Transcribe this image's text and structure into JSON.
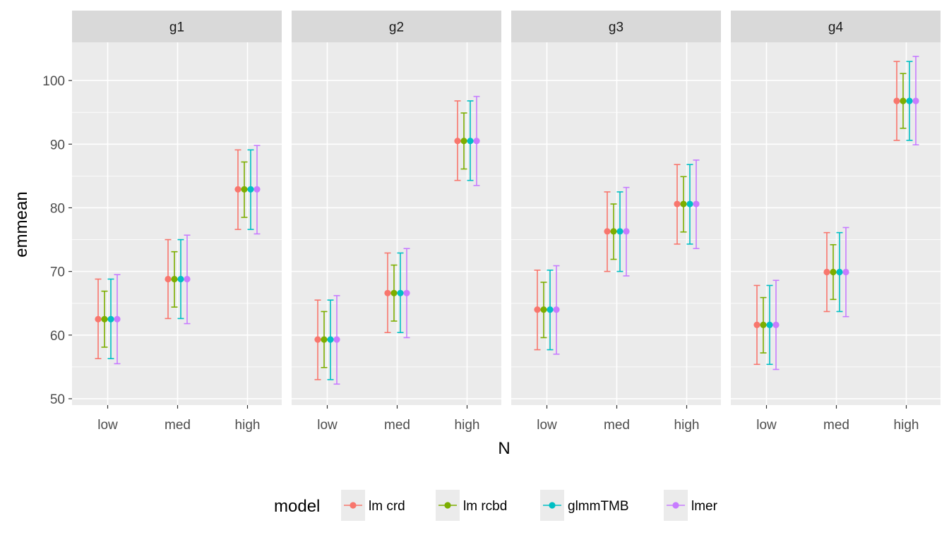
{
  "chart_data": {
    "type": "scatter",
    "subtype": "point-errorbar-faceted",
    "xlabel": "N",
    "ylabel": "emmean",
    "categories": [
      "low",
      "med",
      "high"
    ],
    "facets": [
      "g1",
      "g2",
      "g3",
      "g4"
    ],
    "ylim": [
      49,
      106
    ],
    "yticks": [
      50,
      60,
      70,
      80,
      90,
      100
    ],
    "grid": true,
    "legend": {
      "title": "model",
      "position": "bottom",
      "entries": [
        "lm crd",
        "lm rcbd",
        "glmmTMB",
        "lmer"
      ]
    },
    "colors": {
      "lm crd": "#F8766D",
      "lm rcbd": "#7CAE00",
      "glmmTMB": "#00BFC4",
      "lmer": "#C77CFF"
    },
    "panels": [
      {
        "facet": "g1",
        "series": [
          {
            "name": "lm crd",
            "y": [
              62.5,
              68.8,
              82.9
            ],
            "lower": [
              56.3,
              62.6,
              76.6
            ],
            "upper": [
              68.8,
              75.0,
              89.1
            ]
          },
          {
            "name": "lm rcbd",
            "y": [
              62.5,
              68.8,
              82.9
            ],
            "lower": [
              58.1,
              64.4,
              78.5
            ],
            "upper": [
              66.9,
              73.1,
              87.2
            ]
          },
          {
            "name": "glmmTMB",
            "y": [
              62.5,
              68.8,
              82.9
            ],
            "lower": [
              56.3,
              62.6,
              76.6
            ],
            "upper": [
              68.8,
              75.0,
              89.1
            ]
          },
          {
            "name": "lmer",
            "y": [
              62.5,
              68.8,
              82.9
            ],
            "lower": [
              55.5,
              61.8,
              75.9
            ],
            "upper": [
              69.5,
              75.7,
              89.8
            ]
          }
        ]
      },
      {
        "facet": "g2",
        "series": [
          {
            "name": "lm crd",
            "y": [
              59.3,
              66.6,
              90.5
            ],
            "lower": [
              53.0,
              60.4,
              84.3
            ],
            "upper": [
              65.5,
              72.9,
              96.8
            ]
          },
          {
            "name": "lm rcbd",
            "y": [
              59.3,
              66.6,
              90.5
            ],
            "lower": [
              54.9,
              62.2,
              86.1
            ],
            "upper": [
              63.7,
              71.0,
              94.9
            ]
          },
          {
            "name": "glmmTMB",
            "y": [
              59.3,
              66.6,
              90.5
            ],
            "lower": [
              53.0,
              60.4,
              84.3
            ],
            "upper": [
              65.5,
              72.9,
              96.8
            ]
          },
          {
            "name": "lmer",
            "y": [
              59.3,
              66.6,
              90.5
            ],
            "lower": [
              52.3,
              59.6,
              83.5
            ],
            "upper": [
              66.2,
              73.6,
              97.5
            ]
          }
        ]
      },
      {
        "facet": "g3",
        "series": [
          {
            "name": "lm crd",
            "y": [
              64.0,
              76.3,
              80.6
            ],
            "lower": [
              57.7,
              70.0,
              74.3
            ],
            "upper": [
              70.2,
              82.5,
              86.8
            ]
          },
          {
            "name": "lm rcbd",
            "y": [
              64.0,
              76.3,
              80.6
            ],
            "lower": [
              59.6,
              71.9,
              76.2
            ],
            "upper": [
              68.3,
              80.6,
              84.9
            ]
          },
          {
            "name": "glmmTMB",
            "y": [
              64.0,
              76.3,
              80.6
            ],
            "lower": [
              57.7,
              70.0,
              74.3
            ],
            "upper": [
              70.2,
              82.5,
              86.8
            ]
          },
          {
            "name": "lmer",
            "y": [
              64.0,
              76.3,
              80.6
            ],
            "lower": [
              57.0,
              69.3,
              73.6
            ],
            "upper": [
              70.9,
              83.2,
              87.5
            ]
          }
        ]
      },
      {
        "facet": "g4",
        "series": [
          {
            "name": "lm crd",
            "y": [
              61.6,
              69.9,
              96.8
            ],
            "lower": [
              55.4,
              63.7,
              90.6
            ],
            "upper": [
              67.8,
              76.1,
              103.0
            ]
          },
          {
            "name": "lm rcbd",
            "y": [
              61.6,
              69.9,
              96.8
            ],
            "lower": [
              57.2,
              65.6,
              92.5
            ],
            "upper": [
              65.9,
              74.2,
              101.1
            ]
          },
          {
            "name": "glmmTMB",
            "y": [
              61.6,
              69.9,
              96.8
            ],
            "lower": [
              55.4,
              63.7,
              90.6
            ],
            "upper": [
              67.8,
              76.1,
              103.0
            ]
          },
          {
            "name": "lmer",
            "y": [
              61.6,
              69.9,
              96.8
            ],
            "lower": [
              54.6,
              62.9,
              89.9
            ],
            "upper": [
              68.6,
              76.9,
              103.8
            ]
          }
        ]
      }
    ]
  }
}
